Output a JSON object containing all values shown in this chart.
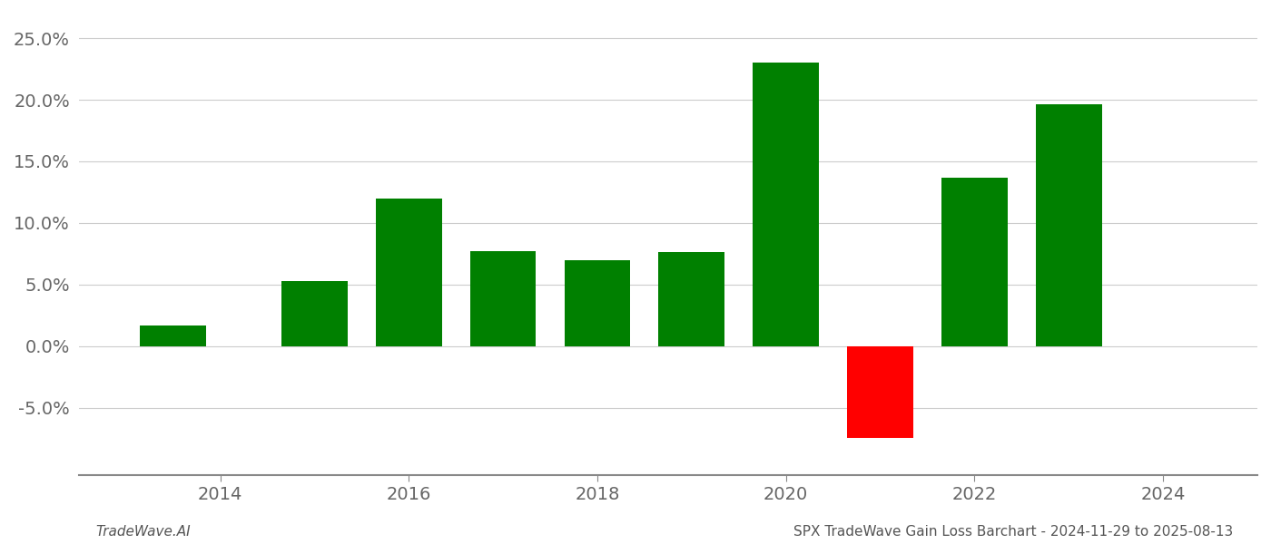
{
  "years": [
    2013.5,
    2015.0,
    2016.0,
    2017.0,
    2018.0,
    2019.0,
    2020.0,
    2021.0,
    2022.0,
    2023.0
  ],
  "values": [
    1.7,
    5.3,
    12.0,
    7.7,
    7.0,
    7.6,
    23.0,
    -7.5,
    13.7,
    19.6
  ],
  "bar_colors": [
    "#008000",
    "#008000",
    "#008000",
    "#008000",
    "#008000",
    "#008000",
    "#008000",
    "#ff0000",
    "#008000",
    "#008000"
  ],
  "bar_width": 0.7,
  "ylim": [
    -10.5,
    27
  ],
  "yticks": [
    -5.0,
    0.0,
    5.0,
    10.0,
    15.0,
    20.0,
    25.0
  ],
  "xlim": [
    2012.5,
    2025.0
  ],
  "xticks": [
    2014,
    2016,
    2018,
    2020,
    2022,
    2024
  ],
  "xlabel": "",
  "ylabel": "",
  "footer_left": "TradeWave.AI",
  "footer_right": "SPX TradeWave Gain Loss Barchart - 2024-11-29 to 2025-08-13",
  "background_color": "#ffffff",
  "grid_color": "#cccccc",
  "axis_fontsize": 14,
  "footer_fontsize": 11
}
